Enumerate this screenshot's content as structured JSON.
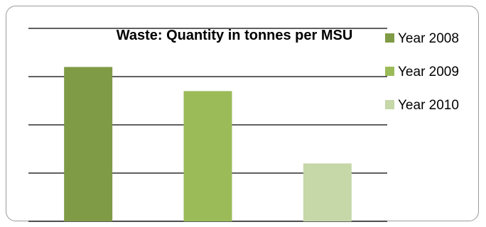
{
  "chart_data": {
    "type": "bar",
    "title": "Waste: Quantity in tonnes per MSU",
    "categories": [
      "Year 2008",
      "Year 2009",
      "Year 2010"
    ],
    "values": [
      3.2,
      2.7,
      1.2
    ],
    "ylim": [
      0,
      4
    ],
    "grid": true,
    "legend_position": "right",
    "colors": [
      "#7f9b45",
      "#9bbb59",
      "#c6d7a8"
    ]
  }
}
